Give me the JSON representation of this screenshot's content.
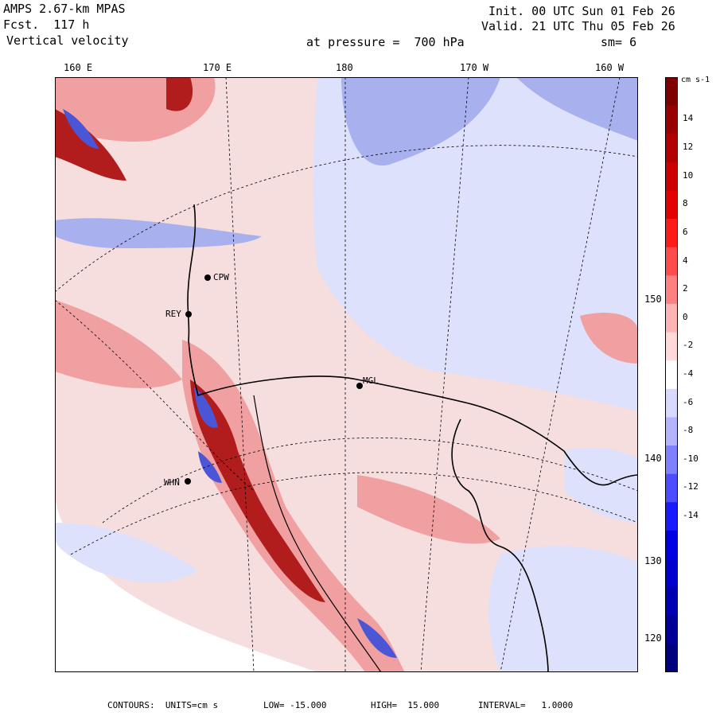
{
  "header": {
    "model": "AMPS 2.67-km MPAS",
    "fcst": "Fcst.  117 h",
    "field": "Vertical velocity",
    "init": "Init. 00 UTC Sun 01 Feb 26",
    "valid": "Valid. 21 UTC Thu 05 Feb 26",
    "pressure": "at pressure =  700 hPa",
    "smooth": "sm= 6"
  },
  "longitude_labels": [
    "160 E",
    "170 E",
    "180",
    "170 W",
    "160 W"
  ],
  "latitude_labels": [
    "150 W",
    "140 W",
    "130 W",
    "120 W"
  ],
  "stations": [
    "CPW",
    "REY",
    "MGL",
    "WHN"
  ],
  "colorbar": {
    "unit": "cm s-1",
    "ticks": [
      "14",
      "12",
      "10",
      "8",
      "6",
      "4",
      "2",
      "0",
      "-2",
      "-4",
      "-6",
      "-8",
      "-10",
      "-12",
      "-14"
    ],
    "colors": [
      "#7f0000",
      "#990000",
      "#b20000",
      "#cc0000",
      "#e50000",
      "#ff1a1a",
      "#ff4d4d",
      "#ff8080",
      "#ffb3b3",
      "#ffd9d9",
      "#ffffff",
      "#d9d9ff",
      "#b3b3ff",
      "#8080ff",
      "#4d4dff",
      "#1a1aff",
      "#0000e5",
      "#0000cc",
      "#0000b2",
      "#000099",
      "#00007f"
    ]
  },
  "footer": {
    "contours": "CONTOURS:  UNITS=cm s",
    "low": "LOW= -15.000",
    "high": "HIGH=  15.000",
    "interval": "INTERVAL=   1.0000"
  },
  "map_colors": {
    "weak_pos": "#f7dede",
    "weak_neg": "#dde1fb",
    "mid_pos": "#f0a0a0",
    "mid_neg": "#a9b0ee",
    "strong_pos": "#b11d1d",
    "strong_neg": "#4a56d6",
    "white": "#ffffff"
  }
}
